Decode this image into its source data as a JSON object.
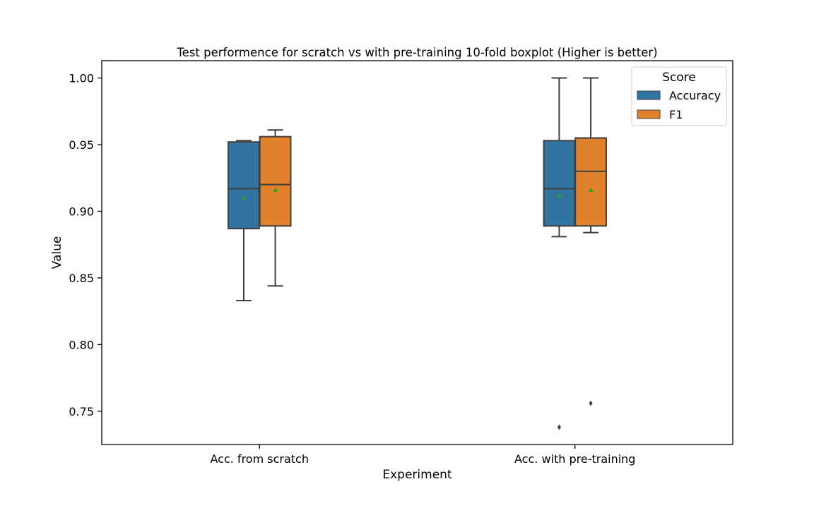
{
  "chart_data": {
    "type": "box",
    "title": "Test performence for scratch vs with pre-training 10-fold boxplot (Higher is better)",
    "xlabel": "Experiment",
    "ylabel": "Value",
    "ylim": [
      0.725,
      1.013
    ],
    "yticks": [
      0.75,
      0.8,
      0.85,
      0.9,
      0.95,
      1.0
    ],
    "ytick_labels": [
      "0.75",
      "0.80",
      "0.85",
      "0.90",
      "0.95",
      "1.00"
    ],
    "categories": [
      "Acc. from scratch",
      "Acc. with pre-training"
    ],
    "legend": {
      "title": "Score",
      "position": "top-right"
    },
    "series": [
      {
        "name": "Accuracy",
        "color": "#3274a1",
        "boxes": [
          {
            "whisker_low": 0.833,
            "q1": 0.887,
            "median": 0.917,
            "q3": 0.952,
            "whisker_high": 0.953,
            "mean": 0.91,
            "outliers": []
          },
          {
            "whisker_low": 0.881,
            "q1": 0.889,
            "median": 0.917,
            "q3": 0.953,
            "whisker_high": 1.0,
            "mean": 0.912,
            "outliers": [
              0.738
            ]
          }
        ]
      },
      {
        "name": "F1",
        "color": "#e1812c",
        "boxes": [
          {
            "whisker_low": 0.844,
            "q1": 0.889,
            "median": 0.92,
            "q3": 0.956,
            "whisker_high": 0.961,
            "mean": 0.916,
            "outliers": []
          },
          {
            "whisker_low": 0.884,
            "q1": 0.889,
            "median": 0.93,
            "q3": 0.955,
            "whisker_high": 1.0,
            "mean": 0.916,
            "outliers": [
              0.756
            ]
          }
        ]
      }
    ],
    "mean_marker_color": "#2ca02c",
    "line_color": "#3f3f3f"
  }
}
